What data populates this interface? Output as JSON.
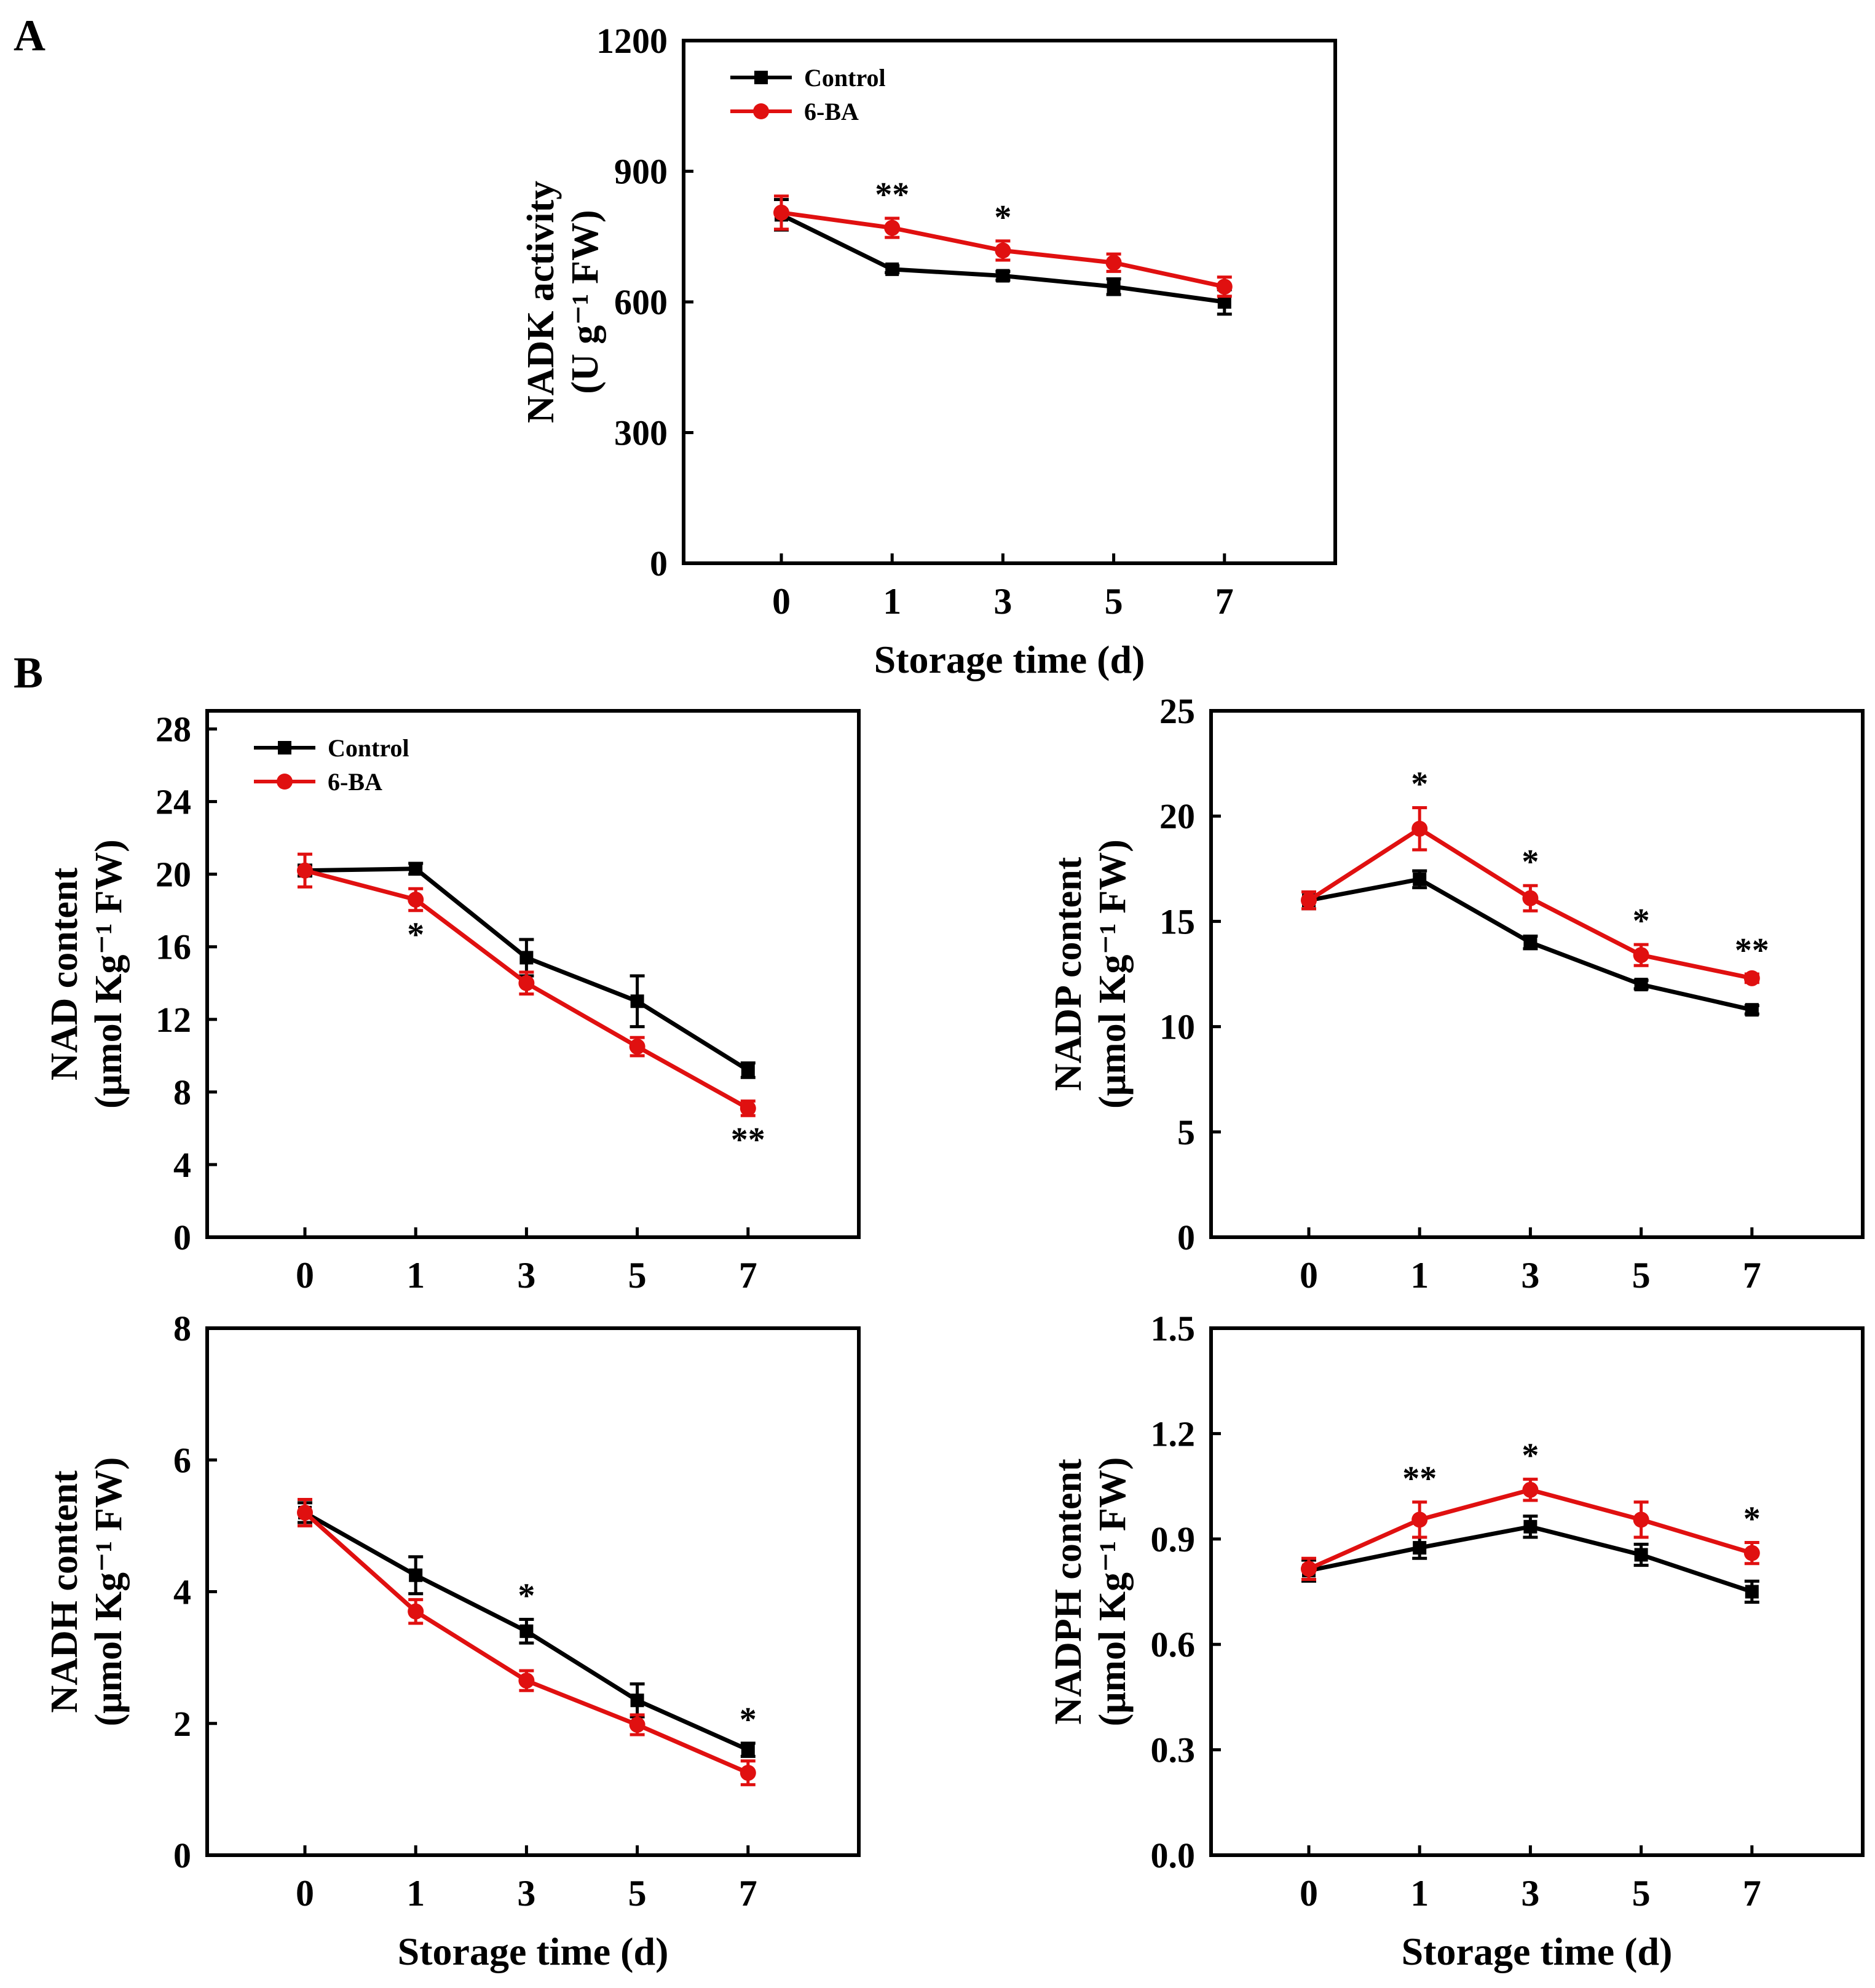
{
  "panel_labels": [
    "A",
    "B"
  ],
  "colors": {
    "control": "#000000",
    "treatment": "#e01010",
    "annotation": "#444444"
  },
  "legend": {
    "control": "Control",
    "treatment": "6-BA"
  },
  "chart_data": [
    {
      "id": "nadk",
      "type": "line",
      "title": "",
      "ylabel_line1": "NADK activity",
      "ylabel_line2": "(U g⁻¹ FW)",
      "xlabel": "Storage time (d)",
      "categories": [
        "0",
        "1",
        "3",
        "5",
        "7"
      ],
      "ylim": [
        0,
        1200
      ],
      "yticks": [
        0,
        300,
        600,
        900,
        1200
      ],
      "ytick_labels": [
        "0",
        "300",
        "600",
        "900",
        "1200"
      ],
      "legend": "top-left",
      "series": [
        {
          "name": "Control",
          "values": [
            800,
            675,
            660,
            635,
            600
          ],
          "errors": [
            35,
            8,
            10,
            18,
            28
          ]
        },
        {
          "name": "6-BA",
          "values": [
            805,
            770,
            718,
            690,
            635
          ],
          "errors": [
            38,
            22,
            22,
            20,
            22
          ]
        }
      ],
      "annotations": [
        {
          "index": 1,
          "text": "**",
          "anchor": "above"
        },
        {
          "index": 2,
          "text": "*",
          "anchor": "above"
        }
      ]
    },
    {
      "id": "nad",
      "type": "line",
      "title": "",
      "ylabel_line1": "NAD content",
      "ylabel_line2": "(μmol Kg⁻¹ FW)",
      "xlabel": "",
      "categories": [
        "0",
        "1",
        "3",
        "5",
        "7"
      ],
      "ylim": [
        0,
        29
      ],
      "yticks": [
        0,
        4,
        8,
        12,
        16,
        20,
        24,
        28
      ],
      "ytick_labels": [
        "0",
        "4",
        "8",
        "12",
        "16",
        "20",
        "24",
        "28"
      ],
      "legend": "top-left",
      "series": [
        {
          "name": "Control",
          "values": [
            20.2,
            20.3,
            15.4,
            13.0,
            9.2
          ],
          "errors": [
            0.3,
            0.3,
            1.0,
            1.4,
            0.4
          ]
        },
        {
          "name": "6-BA",
          "values": [
            20.2,
            18.6,
            14.0,
            10.5,
            7.1
          ],
          "errors": [
            0.9,
            0.6,
            0.6,
            0.5,
            0.4
          ]
        }
      ],
      "annotations": [
        {
          "index": 1,
          "text": "*",
          "anchor": "below"
        },
        {
          "index": 4,
          "text": "**",
          "anchor": "below"
        }
      ]
    },
    {
      "id": "nadp",
      "type": "line",
      "title": "",
      "ylabel_line1": "NADP content",
      "ylabel_line2": "(μmol Kg⁻¹ FW)",
      "xlabel": "",
      "categories": [
        "0",
        "1",
        "3",
        "5",
        "7"
      ],
      "ylim": [
        0,
        25
      ],
      "yticks": [
        0,
        5,
        10,
        15,
        20,
        25
      ],
      "ytick_labels": [
        "0",
        "5",
        "10",
        "15",
        "20",
        "25"
      ],
      "legend": "none",
      "series": [
        {
          "name": "Control",
          "values": [
            16.0,
            17.0,
            14.0,
            12.0,
            10.8
          ],
          "errors": [
            0.4,
            0.4,
            0.3,
            0.2,
            0.2
          ]
        },
        {
          "name": "6-BA",
          "values": [
            16.0,
            19.4,
            16.1,
            13.4,
            12.3
          ],
          "errors": [
            0.4,
            1.0,
            0.6,
            0.5,
            0.2
          ]
        }
      ],
      "annotations": [
        {
          "index": 1,
          "text": "*",
          "anchor": "above"
        },
        {
          "index": 2,
          "text": "*",
          "anchor": "above"
        },
        {
          "index": 3,
          "text": "*",
          "anchor": "above"
        },
        {
          "index": 4,
          "text": "**",
          "anchor": "above"
        }
      ]
    },
    {
      "id": "nadh",
      "type": "line",
      "title": "",
      "ylabel_line1": "NADH content",
      "ylabel_line2": "(μmol Kg⁻¹ FW)",
      "xlabel": "Storage time (d)",
      "categories": [
        "0",
        "1",
        "3",
        "5",
        "7"
      ],
      "ylim": [
        0,
        8
      ],
      "yticks": [
        0,
        2,
        4,
        6,
        8
      ],
      "ytick_labels": [
        "0",
        "2",
        "4",
        "6",
        "8"
      ],
      "legend": "none",
      "series": [
        {
          "name": "Control",
          "values": [
            5.2,
            4.25,
            3.4,
            2.35,
            1.6
          ],
          "errors": [
            0.15,
            0.28,
            0.18,
            0.25,
            0.1
          ]
        },
        {
          "name": "6-BA",
          "values": [
            5.2,
            3.7,
            2.65,
            1.98,
            1.25
          ],
          "errors": [
            0.2,
            0.18,
            0.15,
            0.15,
            0.18
          ]
        }
      ],
      "annotations": [
        {
          "index": 2,
          "text": "*",
          "anchor": "above"
        },
        {
          "index": 4,
          "text": "*",
          "anchor": "above"
        }
      ]
    },
    {
      "id": "nadph",
      "type": "line",
      "title": "",
      "ylabel_line1": "NADPH content",
      "ylabel_line2": "(μmol Kg⁻¹ FW)",
      "xlabel": "Storage time (d)",
      "categories": [
        "0",
        "1",
        "3",
        "5",
        "7"
      ],
      "ylim": [
        0,
        1.5
      ],
      "yticks": [
        0,
        0.3,
        0.6,
        0.9,
        1.2,
        1.5
      ],
      "ytick_labels": [
        "0.0",
        "0.3",
        "0.6",
        "0.9",
        "1.2",
        "1.5"
      ],
      "legend": "none",
      "series": [
        {
          "name": "Control",
          "values": [
            0.81,
            0.875,
            0.935,
            0.855,
            0.75
          ],
          "errors": [
            0.03,
            0.03,
            0.03,
            0.03,
            0.03
          ]
        },
        {
          "name": "6-BA",
          "values": [
            0.815,
            0.955,
            1.04,
            0.955,
            0.86
          ],
          "errors": [
            0.03,
            0.05,
            0.03,
            0.05,
            0.03
          ]
        }
      ],
      "annotations": [
        {
          "index": 1,
          "text": "**",
          "anchor": "above"
        },
        {
          "index": 2,
          "text": "*",
          "anchor": "above"
        },
        {
          "index": 4,
          "text": "*",
          "anchor": "above"
        }
      ]
    }
  ]
}
